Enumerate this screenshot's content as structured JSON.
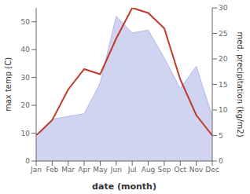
{
  "chart_data": {
    "type": "area",
    "categories": [
      "Jan",
      "Feb",
      "Mar",
      "Apr",
      "May",
      "Jun",
      "Jul",
      "Aug",
      "Sep",
      "Oct",
      "Nov",
      "Dec"
    ],
    "series": [
      {
        "type": "area",
        "color": "#b0b8e8",
        "values": [
          8,
          15,
          16,
          17,
          28,
          52,
          46,
          47,
          37,
          26,
          34,
          16
        ]
      },
      {
        "type": "line",
        "color": "#c0392b",
        "axis": "y2",
        "values": [
          5,
          8,
          14,
          18,
          17,
          24,
          30,
          29,
          26,
          16,
          9,
          5
        ]
      }
    ],
    "xlabel": "date (month)",
    "ylabel": "max temp (C)",
    "y2label": "med. precipitation (kg/m2)",
    "ylim": [
      0,
      55
    ],
    "yticks": [
      0,
      10,
      20,
      30,
      40,
      50
    ],
    "y2lim": [
      0,
      30
    ],
    "y2ticks": [
      0,
      5,
      10,
      15,
      20,
      25,
      30
    ],
    "grid": false
  }
}
